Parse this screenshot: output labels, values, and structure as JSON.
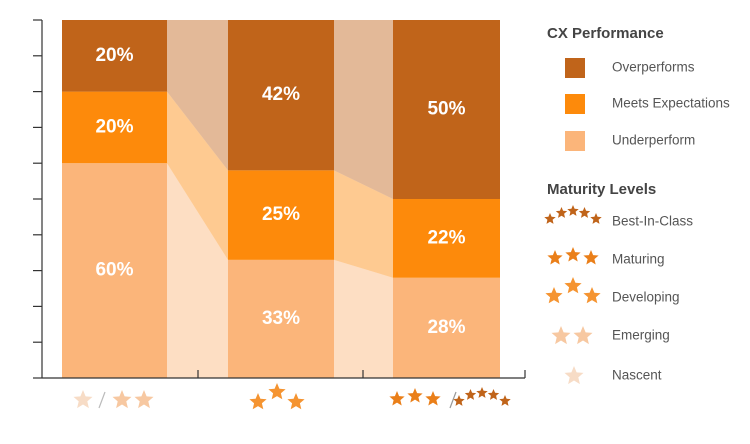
{
  "chart_data": {
    "type": "stacked-bar",
    "categories": [
      null,
      null,
      null
    ],
    "series": [
      {
        "name": "Underperform",
        "color": "#fbb57a",
        "values": [
          60,
          33,
          28
        ],
        "value_labels": [
          "60%",
          "33%",
          "28%"
        ]
      },
      {
        "name": "Meets Expectations",
        "color": "#fd8a0b",
        "values": [
          20,
          25,
          22
        ],
        "value_labels": [
          "20%",
          "25%",
          "22%"
        ]
      },
      {
        "name": "Overperforms",
        "color": "#c0641a",
        "values": [
          20,
          42,
          50
        ],
        "value_labels": [
          "20%",
          "42%",
          "50%"
        ]
      }
    ],
    "ylim": [
      0,
      100
    ],
    "yticks": [
      0,
      10,
      20,
      30,
      40,
      50,
      60,
      70,
      80,
      90,
      100
    ],
    "legend_title": "CX Performance",
    "maturity_title": "Maturity Levels",
    "maturity_levels": [
      "Best-In-Class",
      "Maturing",
      "Developing",
      "Emerging",
      "Nascent"
    ]
  }
}
